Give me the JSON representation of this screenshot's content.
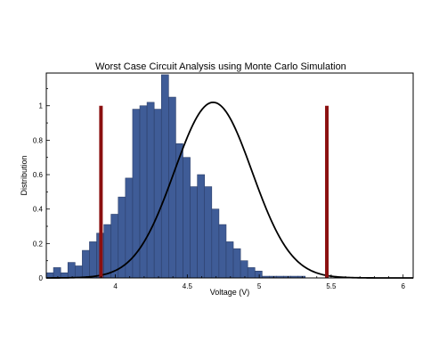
{
  "chart_data": {
    "type": "bar",
    "title": "Worst Case Circuit Analysis using Monte Carlo Simulation",
    "xlabel": "Voltage (V)",
    "ylabel": "Distribution",
    "xlim": [
      3.52,
      6.07
    ],
    "ylim": [
      0,
      1.19
    ],
    "xticks": [
      4,
      4.5,
      5,
      5.5,
      6
    ],
    "xtick_labels": [
      "4",
      "4.5",
      "5",
      "5.5",
      "6"
    ],
    "yticks": [
      0,
      0.2,
      0.4,
      0.6,
      0.8,
      1
    ],
    "ytick_labels": [
      "0",
      "0.2",
      "0.4",
      "0.6",
      "0.8",
      "1"
    ],
    "histogram": {
      "bin_start": 3.52,
      "bin_width": 0.05,
      "values": [
        0.03,
        0.06,
        0.03,
        0.09,
        0.07,
        0.16,
        0.21,
        0.26,
        0.31,
        0.37,
        0.47,
        0.58,
        0.98,
        1.0,
        1.02,
        0.98,
        1.18,
        1.05,
        0.78,
        0.7,
        0.53,
        0.6,
        0.53,
        0.4,
        0.31,
        0.21,
        0.17,
        0.1,
        0.06,
        0.04,
        0.01,
        0.01,
        0.01,
        0.01,
        0.01,
        0.01
      ]
    },
    "fit_curve": {
      "type": "normal",
      "mean": 4.68,
      "std": 0.27,
      "peak": 1.02
    },
    "limit_lines": [
      {
        "x": 3.9,
        "y_top": 1.0
      },
      {
        "x": 5.47,
        "y_top": 1.0
      }
    ],
    "colors": {
      "bars": "#3f5c97",
      "fit": "#000000",
      "limits": "#8b1010"
    },
    "grid": false,
    "legend": "none"
  }
}
